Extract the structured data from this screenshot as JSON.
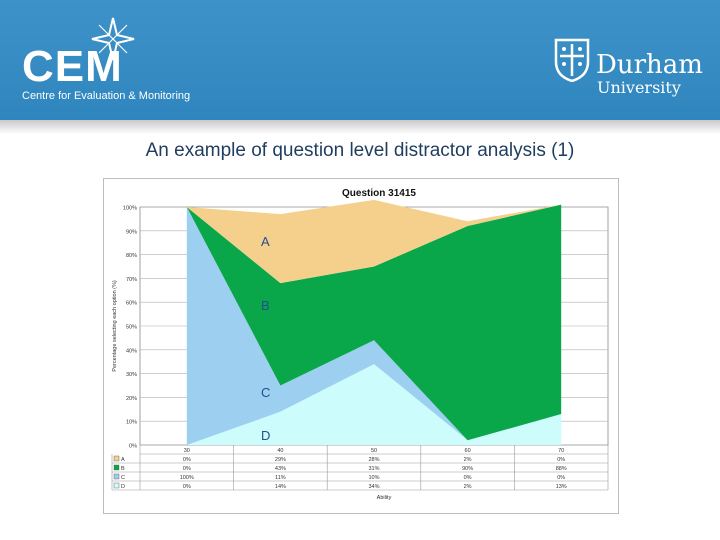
{
  "header": {
    "cem_logo_text": "CEM",
    "cem_subtitle": "Centre for Evaluation & Monitoring",
    "university_name": "Durham",
    "university_word": "University",
    "background_color": "#3a8fc6"
  },
  "slide": {
    "title": "An example of question level distractor analysis (1)"
  },
  "chart_data": {
    "type": "area",
    "stacked": true,
    "title": "Question 31415",
    "xlabel": "Ability",
    "ylabel": "Percentage selecting each option (%)",
    "ylim": [
      0,
      100
    ],
    "y_ticks": [
      "0%",
      "10%",
      "20%",
      "30%",
      "40%",
      "50%",
      "60%",
      "70%",
      "80%",
      "90%",
      "100%"
    ],
    "x": [
      "30",
      "40",
      "50",
      "60",
      "70"
    ],
    "grid": true,
    "series": [
      {
        "name": "A",
        "color": "#f5d08c",
        "values": [
          0,
          29,
          28,
          2,
          0
        ],
        "labels": [
          "0%",
          "29%",
          "28%",
          "2%",
          "0%"
        ]
      },
      {
        "name": "B",
        "color": "#0aa64a",
        "values": [
          0,
          43,
          31,
          90,
          88
        ],
        "labels": [
          "0%",
          "43%",
          "31%",
          "90%",
          "88%"
        ]
      },
      {
        "name": "C",
        "color": "#9ccff0",
        "values": [
          100,
          11,
          10,
          0,
          0
        ],
        "labels": [
          "100%",
          "11%",
          "10%",
          "0%",
          "0%"
        ]
      },
      {
        "name": "D",
        "color": "#ccfcfc",
        "values": [
          0,
          14,
          34,
          2,
          13
        ],
        "labels": [
          "0%",
          "14%",
          "34%",
          "2%",
          "13%"
        ]
      }
    ],
    "annotations": [
      "A",
      "B",
      "C",
      "D"
    ]
  }
}
